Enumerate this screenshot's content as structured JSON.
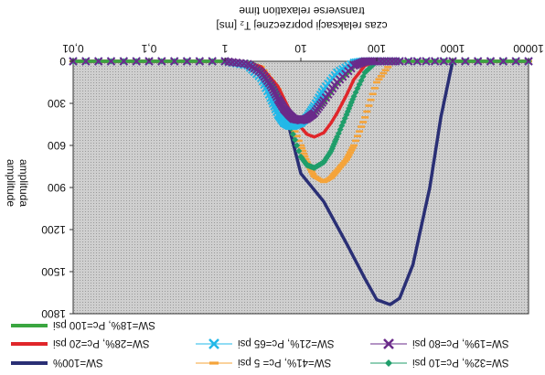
{
  "chart_data": {
    "type": "line",
    "title": "",
    "orientation_note": "",
    "xlabel_lines": [
      "transverse relaxation time",
      "czas relaksacji poprzecznej T₂ [ms]"
    ],
    "ylabel_lines": [
      "amplitude",
      "amplituda"
    ],
    "x_scale": "log",
    "xlim": [
      0.01,
      10000
    ],
    "x_ticks": [
      "0,01",
      "0,1",
      "1",
      "10",
      "100",
      "1000",
      "10000"
    ],
    "ylim": [
      0,
      1800
    ],
    "y_ticks": [
      "0",
      "300",
      "600",
      "900",
      "1200",
      "1500",
      "1800"
    ],
    "x_tick_values": [
      0.01,
      0.1,
      1,
      10,
      100,
      1000,
      10000
    ],
    "y_tick_values": [
      0,
      300,
      600,
      900,
      1200,
      1500,
      1800
    ],
    "grid": false,
    "legend_position": "bottom",
    "series": [
      {
        "name": "SW=18%, Pc=100 psi",
        "color": "#3aa640",
        "style": "line",
        "x": [
          0.01,
          0.1,
          1,
          2,
          3,
          4,
          5,
          6,
          7,
          8,
          10,
          12,
          15,
          20,
          30,
          50,
          70,
          100,
          200,
          1000,
          10000
        ],
        "y": [
          0,
          0,
          0,
          20,
          80,
          180,
          280,
          350,
          390,
          410,
          420,
          415,
          380,
          300,
          160,
          40,
          5,
          0,
          0,
          0,
          0
        ]
      },
      {
        "name": "SW=28%, Pc=20 psi",
        "color": "#e0262a",
        "style": "line",
        "x": [
          0.01,
          0.1,
          1,
          2,
          3,
          5,
          7,
          10,
          12,
          15,
          20,
          25,
          30,
          40,
          50,
          70,
          100,
          200,
          1000,
          10000
        ],
        "y": [
          0,
          0,
          0,
          10,
          40,
          180,
          340,
          470,
          520,
          540,
          510,
          440,
          370,
          240,
          130,
          30,
          0,
          0,
          0,
          0
        ]
      },
      {
        "name": "SW=100%",
        "color": "#2a2f75",
        "style": "line",
        "x": [
          0.01,
          0.1,
          1,
          2,
          3,
          5,
          7,
          10,
          20,
          40,
          70,
          100,
          150,
          200,
          300,
          500,
          700,
          1000,
          10000
        ],
        "y": [
          0,
          0,
          0,
          20,
          80,
          260,
          470,
          800,
          1000,
          1300,
          1550,
          1700,
          1735,
          1690,
          1450,
          900,
          400,
          0,
          0
        ]
      },
      {
        "name": "SW=21%, Pc=65 psi",
        "color": "#22b8e8",
        "style": "x-marker",
        "x": [
          0.01,
          0.1,
          1,
          2,
          3,
          4,
          5,
          6,
          7,
          8,
          10,
          12,
          15,
          20,
          30,
          50,
          70,
          100,
          200,
          1000,
          10000
        ],
        "y": [
          0,
          0,
          0,
          30,
          120,
          260,
          380,
          440,
          460,
          460,
          440,
          400,
          320,
          200,
          80,
          10,
          0,
          0,
          0,
          0,
          0
        ]
      },
      {
        "name": "SW=41%, Pc= 5 psi",
        "color": "#f5a43a",
        "style": "dash-marker",
        "x": [
          0.01,
          0.1,
          1,
          2,
          3,
          5,
          7,
          10,
          12,
          15,
          20,
          25,
          30,
          40,
          50,
          70,
          100,
          150,
          200,
          1000,
          10000
        ],
        "y": [
          0,
          0,
          0,
          10,
          40,
          200,
          400,
          600,
          720,
          820,
          860,
          830,
          780,
          700,
          600,
          400,
          150,
          20,
          0,
          0,
          0
        ]
      },
      {
        "name": "SW=19%, Pc=80 psi",
        "color": "#6a2a8a",
        "style": "x-marker",
        "x": [
          0.01,
          0.1,
          1,
          2,
          3,
          4,
          5,
          6,
          7,
          8,
          10,
          12,
          15,
          20,
          30,
          50,
          70,
          100,
          200,
          1000,
          10000
        ],
        "y": [
          0,
          0,
          0,
          20,
          80,
          170,
          270,
          340,
          380,
          410,
          420,
          410,
          370,
          280,
          150,
          30,
          0,
          0,
          0,
          0,
          0
        ]
      },
      {
        "name": "SW=32%, Pc=10 psi",
        "color": "#1f9e6a",
        "style": "diamond-marker",
        "x": [
          0.01,
          0.1,
          1,
          2,
          3,
          5,
          7,
          10,
          12,
          15,
          20,
          25,
          30,
          40,
          50,
          70,
          100,
          200,
          1000,
          10000
        ],
        "y": [
          0,
          0,
          0,
          10,
          50,
          220,
          440,
          680,
          740,
          760,
          720,
          640,
          540,
          380,
          250,
          80,
          0,
          0,
          0,
          0
        ]
      }
    ]
  }
}
